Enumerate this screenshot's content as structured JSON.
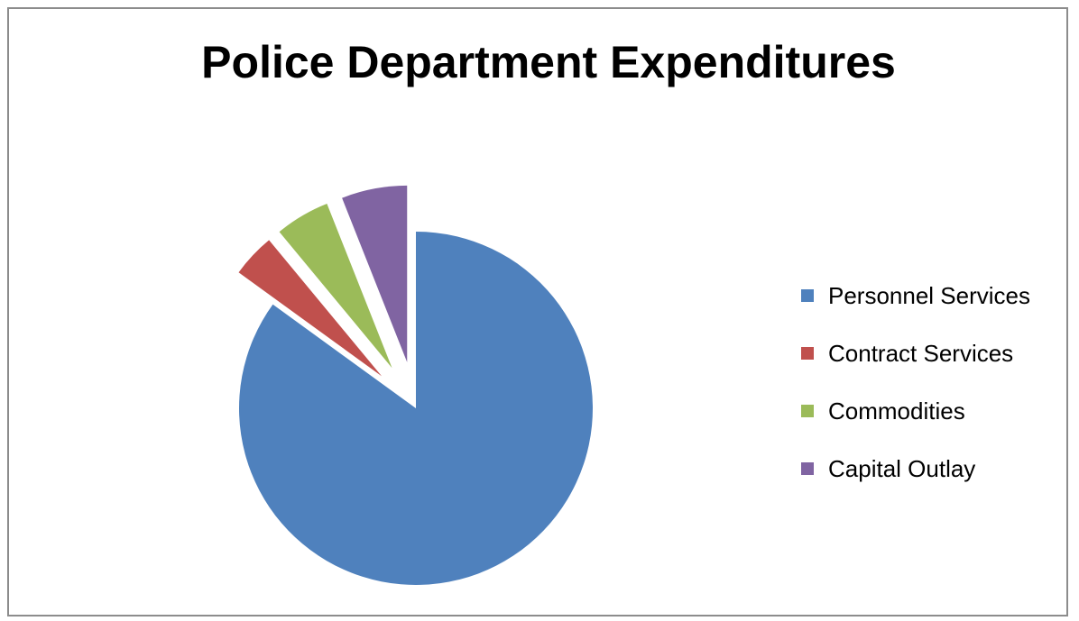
{
  "chart_data": {
    "type": "pie",
    "title": "Police Department Expenditures",
    "categories": [
      "Personnel Services",
      "Contract Services",
      "Commodities",
      "Capital Outlay"
    ],
    "values": [
      85,
      4,
      5,
      6
    ],
    "value_unit": "percent of total (estimated)",
    "colors": [
      "#4F81BD",
      "#C0504D",
      "#9BBB59",
      "#8064A2"
    ],
    "exploded": [
      false,
      true,
      true,
      true
    ],
    "start_angle_deg": 0,
    "direction": "clockwise",
    "legend_position": "right"
  }
}
